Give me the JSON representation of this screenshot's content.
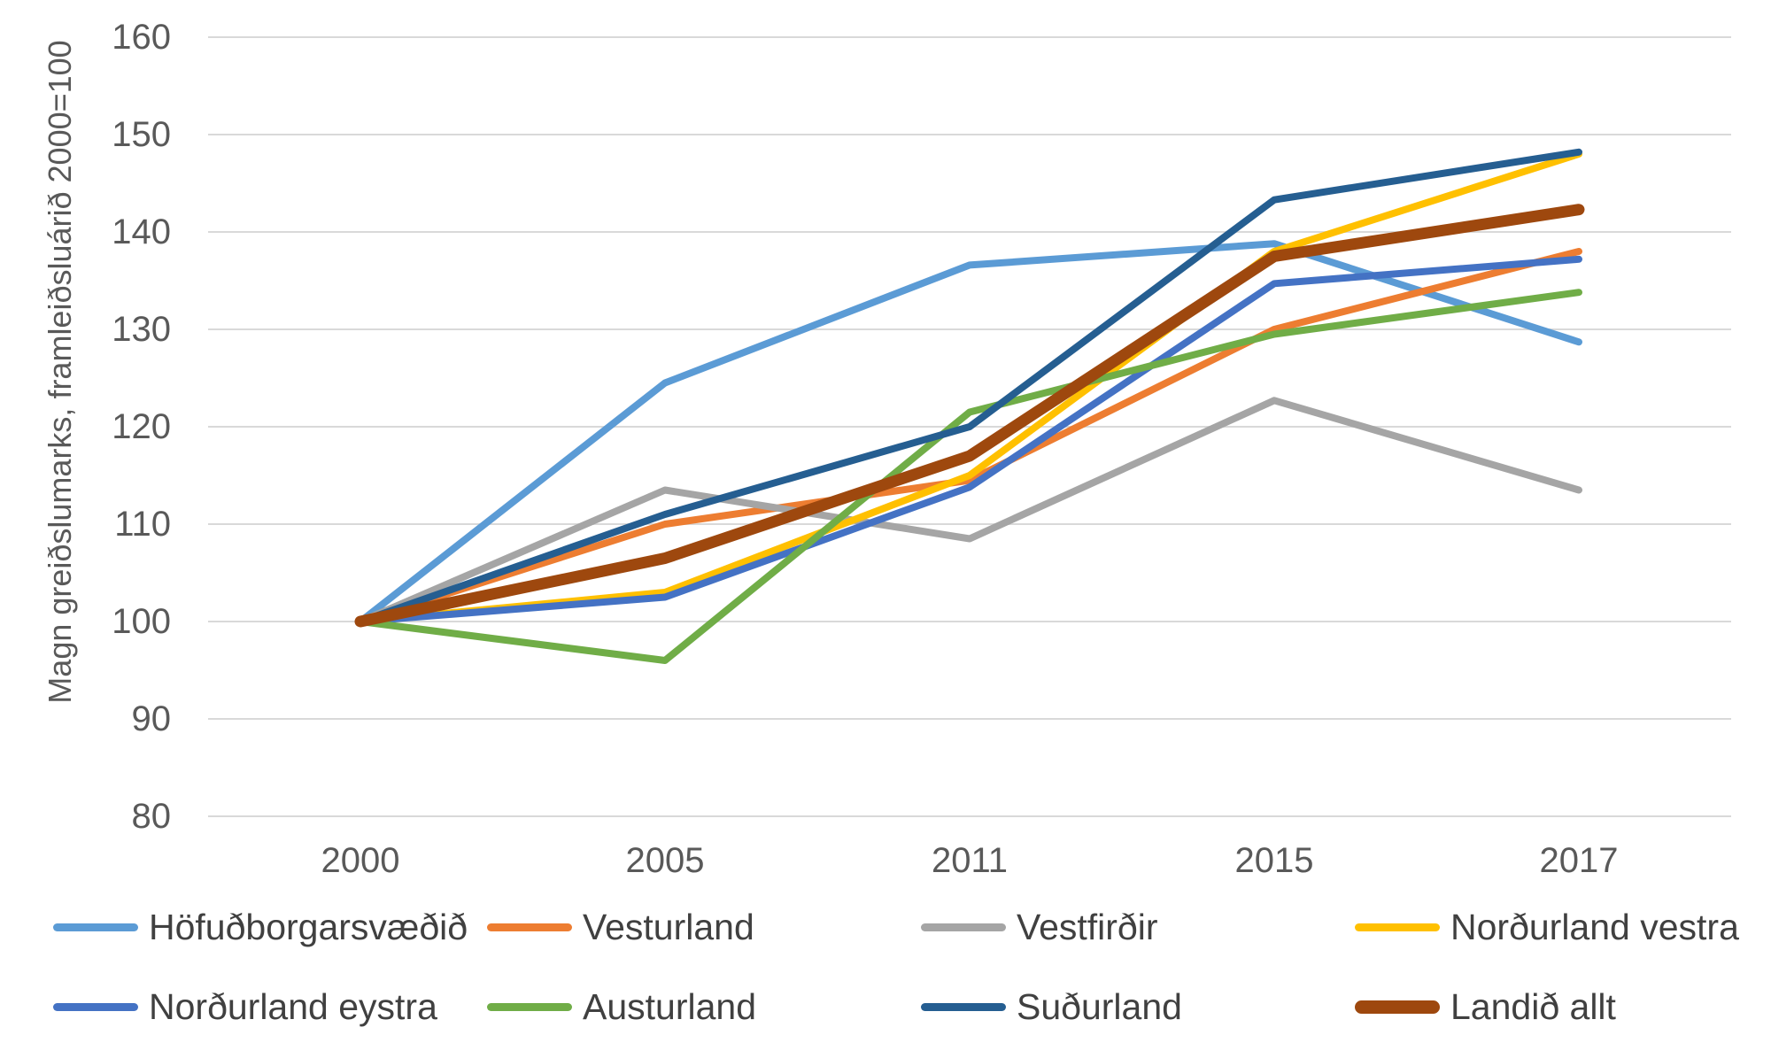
{
  "chart_data": {
    "type": "line",
    "categories": [
      "2000",
      "2005",
      "2011",
      "2015",
      "2017"
    ],
    "title": "",
    "xlabel": "",
    "ylabel": "Magn greiðslumarks, framleiðsluárið 2000=100",
    "ylim": [
      80,
      160
    ],
    "y_ticks": [
      80,
      90,
      100,
      110,
      120,
      130,
      140,
      150,
      160
    ],
    "grid": "horizontal",
    "legend_position": "bottom",
    "series": [
      {
        "name": "Höfuðborgarsvæðið",
        "color": "#5B9BD5",
        "thick": false,
        "values": [
          100,
          124.5,
          136.6,
          138.8,
          128.7
        ]
      },
      {
        "name": "Vesturland",
        "color": "#ED7D31",
        "thick": false,
        "values": [
          100,
          110,
          114.5,
          130,
          138
        ]
      },
      {
        "name": "Vestfirðir",
        "color": "#A5A5A5",
        "thick": false,
        "values": [
          100,
          113.5,
          108.5,
          122.7,
          113.5
        ]
      },
      {
        "name": "Norðurland vestra",
        "color": "#FFC000",
        "thick": false,
        "values": [
          100,
          103,
          115,
          138,
          148
        ]
      },
      {
        "name": "Norðurland eystra",
        "color": "#4472C4",
        "thick": false,
        "values": [
          100,
          102.5,
          113.8,
          134.7,
          137.2
        ]
      },
      {
        "name": "Austurland",
        "color": "#70AD47",
        "thick": false,
        "values": [
          100,
          96,
          121.5,
          129.5,
          133.8
        ]
      },
      {
        "name": "Suðurland",
        "color": "#255E91",
        "thick": false,
        "values": [
          100,
          111,
          120,
          143.3,
          148.2
        ]
      },
      {
        "name": "Landið allt",
        "color": "#9E480E",
        "thick": true,
        "values": [
          100,
          106.5,
          117,
          137.5,
          142.3
        ]
      }
    ],
    "colors": {
      "gridline": "#D9D9D9",
      "tick_label": "#595959",
      "axis_title": "#595959",
      "legend_label": "#404040",
      "background": "#FFFFFF"
    }
  }
}
